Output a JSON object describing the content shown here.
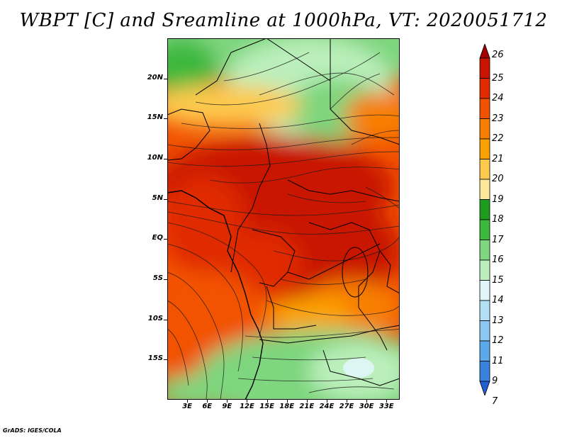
{
  "title": "WBPT [C] and Sreamline at 1000hPa, VT: 2020051712",
  "footer": "GrADS: IGES/COLA",
  "lat_labels": [
    "20N",
    "15N",
    "10N",
    "5N",
    "EQ",
    "5S",
    "10S",
    "15S"
  ],
  "lat_values": [
    20,
    15,
    10,
    5,
    0,
    -5,
    -10,
    -15
  ],
  "lon_labels": [
    "3E",
    "6E",
    "9E",
    "12E",
    "15E",
    "18E",
    "21E",
    "24E",
    "27E",
    "30E",
    "33E"
  ],
  "lon_values": [
    3,
    6,
    9,
    12,
    15,
    18,
    21,
    24,
    27,
    30,
    33
  ],
  "extent": {
    "lon_min": 0,
    "lon_max": 35,
    "lat_min": -20,
    "lat_max": 25
  },
  "colorbar": {
    "labels": [
      "26",
      "25",
      "24",
      "23",
      "22",
      "21",
      "20",
      "19",
      "18",
      "17",
      "16",
      "15",
      "14",
      "13",
      "12",
      "11",
      "9",
      "7"
    ],
    "colors": [
      "#a50000",
      "#c81400",
      "#e02a00",
      "#f25200",
      "#f77f00",
      "#fba200",
      "#fdc94e",
      "#fde79a",
      "#1e9c1e",
      "#3cb83c",
      "#7ed67e",
      "#bcefbc",
      "#e0f6f8",
      "#b4e0f6",
      "#8cc6f4",
      "#5ca8ec",
      "#3882e0",
      "#1f5fd2"
    ]
  }
}
